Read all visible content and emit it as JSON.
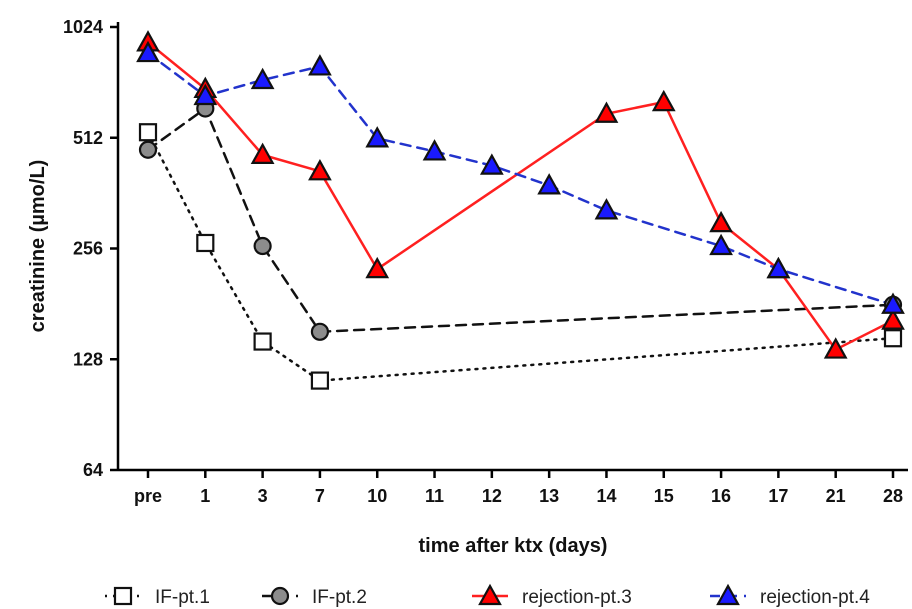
{
  "chart_data": {
    "type": "line",
    "xlabel": "time after ktx (days)",
    "ylabel": "creatinine (µmo/L)",
    "categories": [
      "pre",
      "1",
      "3",
      "7",
      "10",
      "11",
      "12",
      "13",
      "14",
      "15",
      "16",
      "17",
      "21",
      "28"
    ],
    "yscale": "log2",
    "yticks": [
      64,
      128,
      256,
      512,
      1024
    ],
    "ylim": [
      64,
      1024
    ],
    "grid": false,
    "legend_position": "bottom",
    "series": [
      {
        "name": "IF-pt.1",
        "marker": "square",
        "marker_fill": "#ffffff",
        "line_color": "#111111",
        "line_style": "dotted",
        "points": [
          {
            "x": "pre",
            "y": 530
          },
          {
            "x": "1",
            "y": 265
          },
          {
            "x": "3",
            "y": 143
          },
          {
            "x": "7",
            "y": 112
          },
          {
            "x": "28",
            "y": 146
          }
        ]
      },
      {
        "name": "IF-pt.2",
        "marker": "circle",
        "marker_fill": "#8c8c8c",
        "line_color": "#111111",
        "line_style": "dashed",
        "points": [
          {
            "x": "pre",
            "y": 475
          },
          {
            "x": "1",
            "y": 615
          },
          {
            "x": "3",
            "y": 260
          },
          {
            "x": "7",
            "y": 152
          },
          {
            "x": "28",
            "y": 180
          }
        ]
      },
      {
        "name": "rejection-pt.3",
        "marker": "triangle",
        "marker_fill": "#ff0000",
        "line_color": "#ff2020",
        "line_style": "solid",
        "points": [
          {
            "x": "pre",
            "y": 930
          },
          {
            "x": "1",
            "y": 695
          },
          {
            "x": "3",
            "y": 460
          },
          {
            "x": "7",
            "y": 415
          },
          {
            "x": "10",
            "y": 225
          },
          {
            "x": "14",
            "y": 595
          },
          {
            "x": "15",
            "y": 640
          },
          {
            "x": "16",
            "y": 300
          },
          {
            "x": "17",
            "y": 225
          },
          {
            "x": "21",
            "y": 136
          },
          {
            "x": "28",
            "y": 163
          }
        ]
      },
      {
        "name": "rejection-pt.4",
        "marker": "triangle",
        "marker_fill": "#1a1aff",
        "line_color": "#2233cc",
        "line_style": "dashed",
        "points": [
          {
            "x": "pre",
            "y": 870
          },
          {
            "x": "1",
            "y": 665
          },
          {
            "x": "3",
            "y": 735
          },
          {
            "x": "7",
            "y": 800
          },
          {
            "x": "10",
            "y": 510
          },
          {
            "x": "11",
            "y": 470
          },
          {
            "x": "12",
            "y": 430
          },
          {
            "x": "13",
            "y": 380
          },
          {
            "x": "14",
            "y": 325
          },
          {
            "x": "16",
            "y": 260
          },
          {
            "x": "17",
            "y": 225
          },
          {
            "x": "28",
            "y": 180
          }
        ]
      }
    ]
  }
}
